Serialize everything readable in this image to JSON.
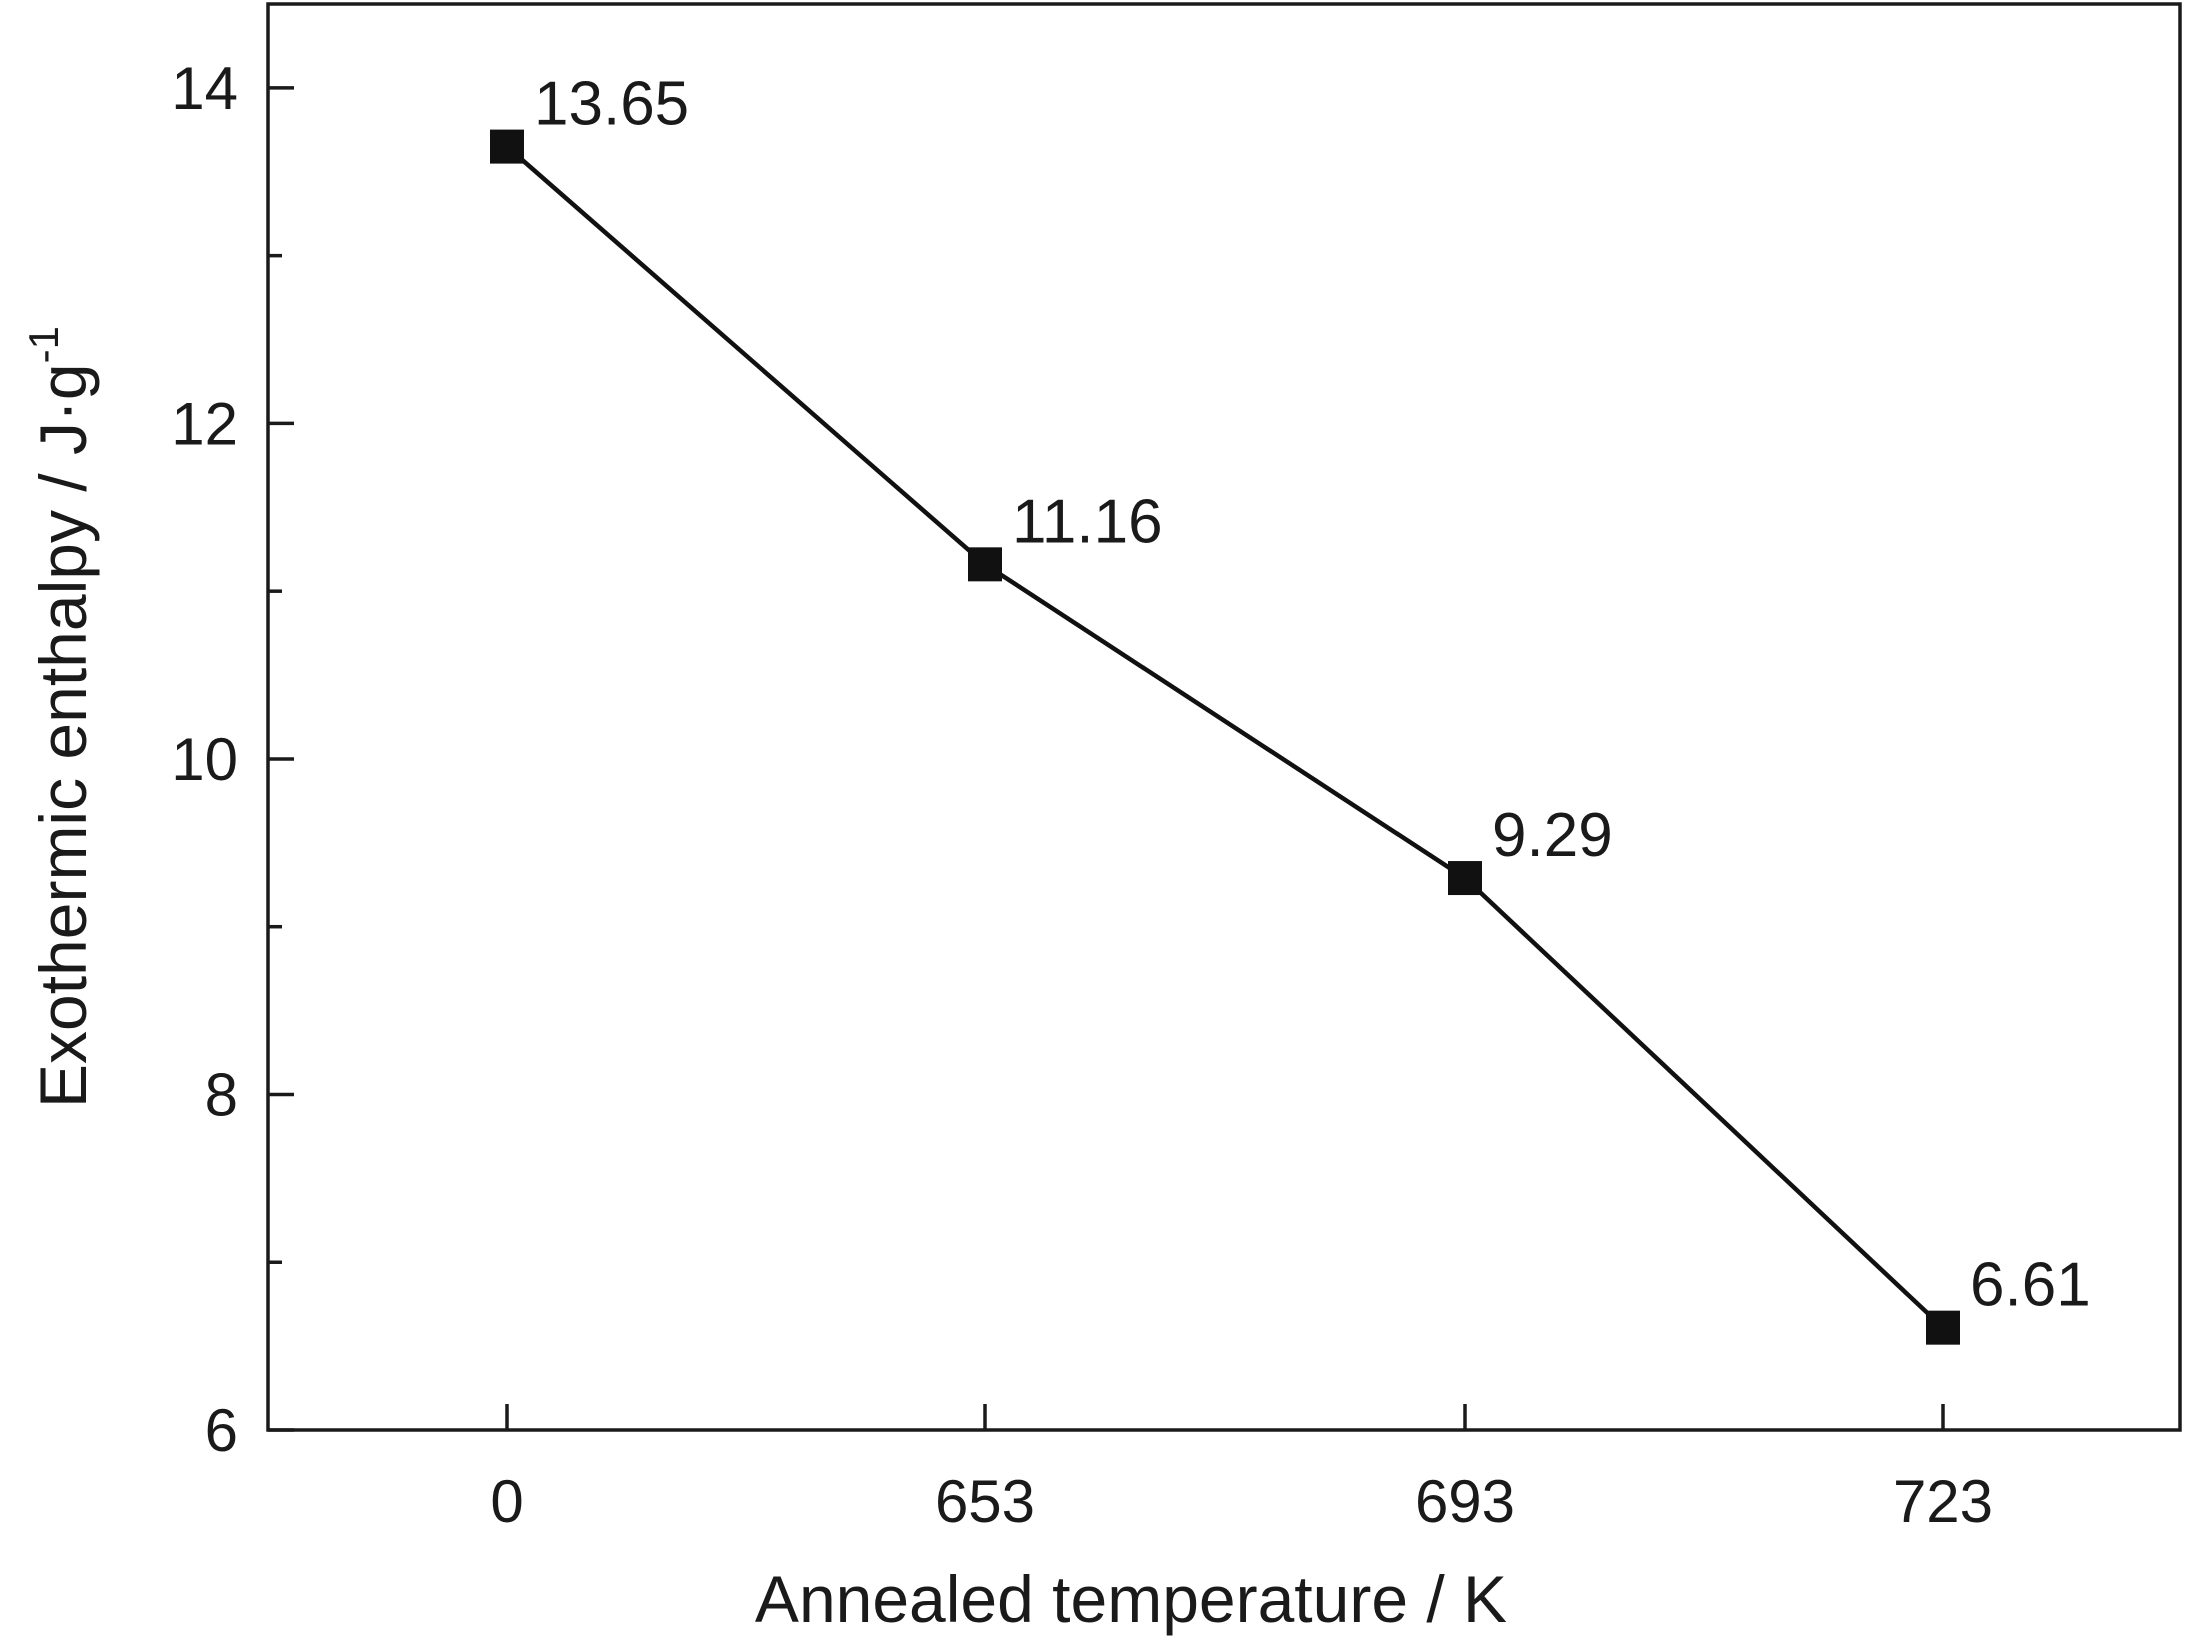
{
  "chart_data": {
    "type": "line",
    "categories": [
      "0",
      "653",
      "693",
      "723"
    ],
    "series": [
      {
        "values": [
          13.65,
          11.16,
          9.29,
          6.61
        ],
        "marker": "square",
        "color": "#111111"
      }
    ],
    "data_labels": [
      "13.65",
      "11.16",
      "9.29",
      "6.61"
    ],
    "xlabel": "Annealed temperature / K",
    "ylabel": {
      "main": "Exothermic enthalpy / J·g",
      "superscript": "-1"
    },
    "ylim": [
      6,
      14.5
    ],
    "yticks": [
      6,
      8,
      10,
      12,
      14
    ],
    "yticks_minor": [
      7,
      9,
      11,
      13
    ],
    "grid": false,
    "legend": false
  }
}
